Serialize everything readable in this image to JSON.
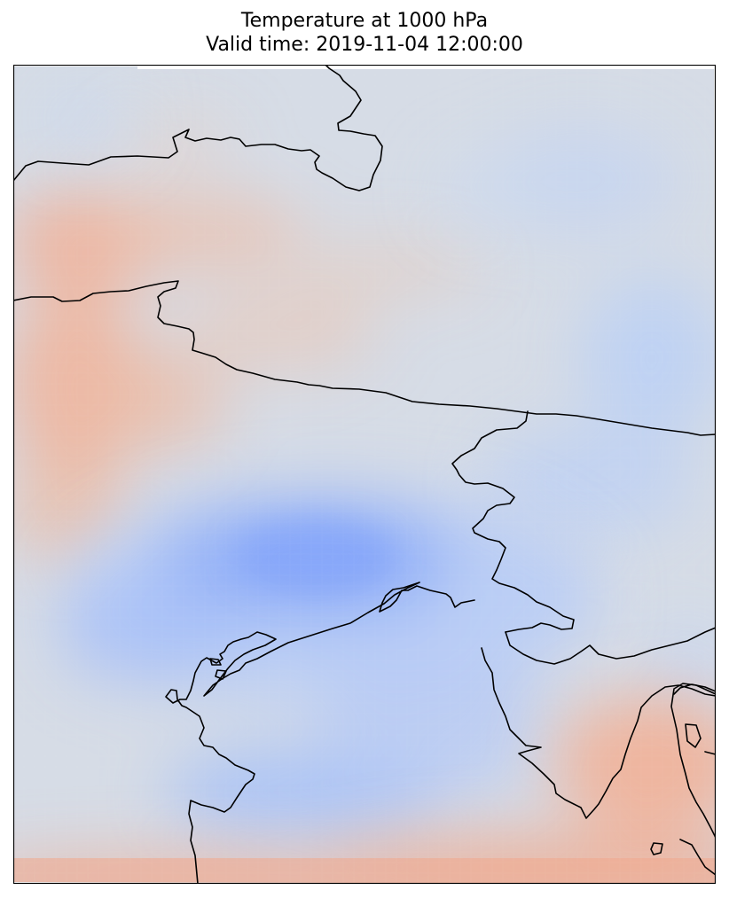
{
  "figure": {
    "title_line1": "Temperature at 1000 hPa",
    "title_line2": "Valid time: 2019-11-04 12:00:00"
  },
  "map": {
    "field": "temperature",
    "level": "1000 hPa",
    "colormap": "coolwarm",
    "colors": {
      "cold": "#7ea2f8",
      "neutral": "#dcdde0",
      "warm": "#f4a485",
      "coastline": "#000000",
      "frame": "#000000"
    },
    "features": [
      "coastlines",
      "borders"
    ]
  }
}
